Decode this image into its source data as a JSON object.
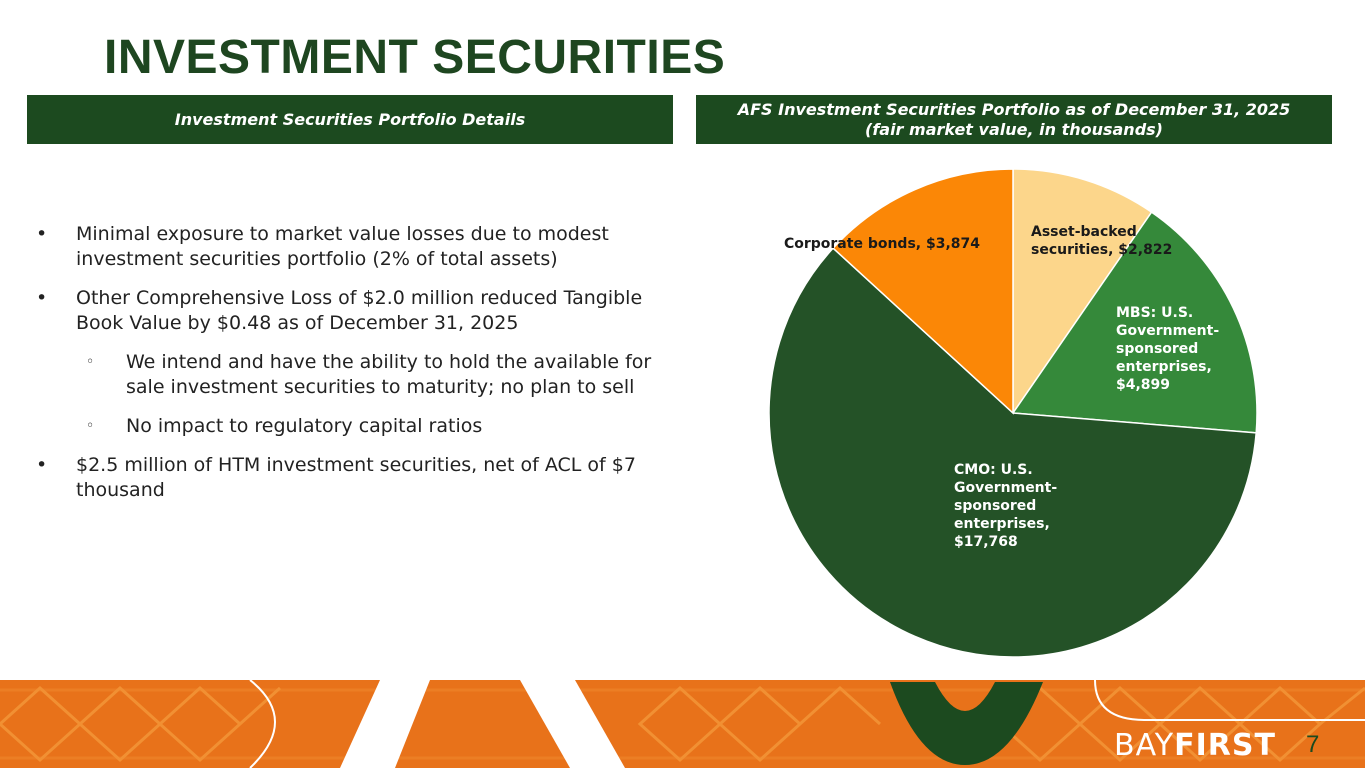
{
  "slide": {
    "title": "INVESTMENT SECURITIES",
    "left_header": "Investment Securities Portfolio Details",
    "right_header_line1": "AFS Investment Securities Portfolio as of December 31, 2025",
    "right_header_line2": "(fair market value, in thousands)",
    "bullets": [
      {
        "marker": "•",
        "text": "Minimal exposure to market value losses due to modest investment securities portfolio (2% of total assets)"
      },
      {
        "marker": "•",
        "text": "Other Comprehensive Loss of $2.0 million reduced Tangible Book Value by $0.48 as of December 31, 2025"
      },
      {
        "marker": "◦",
        "text": "We intend and have the ability to hold the available for sale investment securities to maturity; no plan to sell"
      },
      {
        "marker": "◦",
        "text": "No impact to regulatory capital ratios"
      },
      {
        "marker": "•",
        "text": "$2.5 million of HTM investment securities, net of ACL of $7 thousand"
      }
    ],
    "brand_light": "BAY",
    "brand_heavy": "FIRST",
    "page_number": "7"
  },
  "chart_data": {
    "type": "pie",
    "title": "AFS Investment Securities Portfolio as of December 31, 2025 (fair market value, in thousands)",
    "start": "12 o'clock, clockwise",
    "slices": [
      {
        "name": "Asset-backed securities",
        "value": 2822,
        "label_lines": [
          "Asset-backed",
          "securities, $2,822"
        ],
        "color": "#fcd68b",
        "label_color": "#1a1a1a"
      },
      {
        "name": "MBS: U.S. Government-sponsored enterprises",
        "value": 4899,
        "label_lines": [
          "MBS: U.S.",
          "Government-",
          "sponsored",
          "enterprises,",
          "$4,899"
        ],
        "color": "#35893a",
        "label_color": "#ffffff"
      },
      {
        "name": "CMO: U.S. Government-sponsored enterprises",
        "value": 17768,
        "label_lines": [
          "CMO: U.S.",
          "Government-",
          "sponsored",
          "enterprises,",
          "$17,768"
        ],
        "color": "#245227",
        "label_color": "#ffffff"
      },
      {
        "name": "Corporate bonds",
        "value": 3874,
        "label_lines": [
          "Corporate bonds, $3,874"
        ],
        "color": "#fb8706",
        "label_color": "#1a1a1a"
      }
    ],
    "legend": "none (data labels on slices)"
  },
  "colors": {
    "title": "#1e4620",
    "band": "#1c4a1f",
    "footer_orange": "#e8721a",
    "footer_dark": "#c95f12",
    "footer_green": "#1c4a1f"
  }
}
